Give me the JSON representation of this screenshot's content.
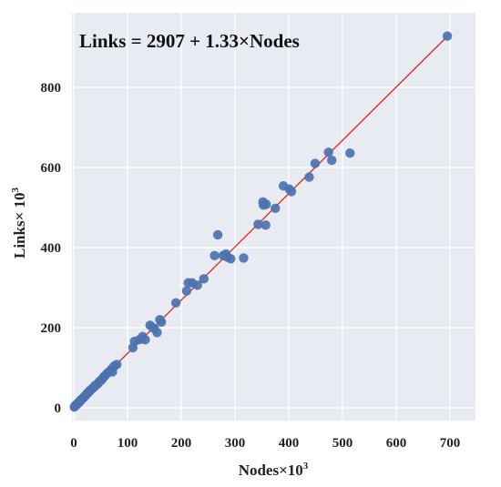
{
  "chart_data": {
    "type": "scatter",
    "title": "",
    "annotation": "Links = 2907 + 1.33×Nodes",
    "xlabel": {
      "text": "Nodes×10",
      "sup": "3"
    },
    "ylabel": {
      "text": "Links× 10",
      "sup": "3"
    },
    "xlim": [
      0,
      750
    ],
    "ylim": [
      -15,
      940
    ],
    "x_ticks": [
      0,
      100,
      200,
      300,
      400,
      500,
      600,
      700
    ],
    "y_ticks": [
      0,
      200,
      400,
      600,
      800
    ],
    "x_tick_labels": [
      "0",
      "100",
      "200",
      "300",
      "400",
      "500",
      "600",
      "700"
    ],
    "y_tick_labels": [
      "0",
      "200",
      "400",
      "600",
      "800"
    ],
    "grid": true,
    "colors": {
      "background": "#E9EBF2",
      "grid": "#FFFFFF",
      "point": "#4C72B0",
      "fit_line": "#E8221E"
    },
    "fit_line": {
      "intercept": 2.907,
      "slope": 1.33,
      "x_range": [
        0,
        695
      ]
    },
    "series": [
      {
        "points": [
          [
            1,
            2
          ],
          [
            2,
            4
          ],
          [
            3,
            5
          ],
          [
            4,
            6
          ],
          [
            5,
            8
          ],
          [
            6,
            9
          ],
          [
            7,
            10
          ],
          [
            8,
            12
          ],
          [
            9,
            13
          ],
          [
            10,
            14
          ],
          [
            11,
            16
          ],
          [
            12,
            18
          ],
          [
            13,
            19
          ],
          [
            15,
            21
          ],
          [
            16,
            23
          ],
          [
            18,
            25
          ],
          [
            19,
            27
          ],
          [
            20,
            28
          ],
          [
            22,
            31
          ],
          [
            24,
            34
          ],
          [
            25,
            36
          ],
          [
            27,
            38
          ],
          [
            29,
            41
          ],
          [
            30,
            43
          ],
          [
            33,
            46
          ],
          [
            35,
            49
          ],
          [
            38,
            52
          ],
          [
            40,
            56
          ],
          [
            43,
            58
          ],
          [
            46,
            62
          ],
          [
            48,
            66
          ],
          [
            52,
            70
          ],
          [
            55,
            76
          ],
          [
            58,
            80
          ],
          [
            62,
            86
          ],
          [
            65,
            89
          ],
          [
            70,
            96
          ],
          [
            72,
            90
          ],
          [
            75,
            104
          ],
          [
            80,
            108
          ],
          [
            110,
            150
          ],
          [
            113,
            166
          ],
          [
            122,
            170
          ],
          [
            128,
            178
          ],
          [
            133,
            170
          ],
          [
            142,
            206
          ],
          [
            147,
            200
          ],
          [
            150,
            198
          ],
          [
            155,
            188
          ],
          [
            160,
            220
          ],
          [
            163,
            214
          ],
          [
            190,
            262
          ],
          [
            210,
            292
          ],
          [
            213,
            312
          ],
          [
            220,
            312
          ],
          [
            230,
            306
          ],
          [
            242,
            322
          ],
          [
            262,
            380
          ],
          [
            268,
            432
          ],
          [
            278,
            380
          ],
          [
            283,
            384
          ],
          [
            286,
            376
          ],
          [
            292,
            372
          ],
          [
            316,
            374
          ],
          [
            343,
            458
          ],
          [
            352,
            514
          ],
          [
            353,
            506
          ],
          [
            358,
            508
          ],
          [
            357,
            456
          ],
          [
            375,
            498
          ],
          [
            390,
            554
          ],
          [
            401,
            546
          ],
          [
            405,
            540
          ],
          [
            438,
            576
          ],
          [
            449,
            610
          ],
          [
            474,
            638
          ],
          [
            480,
            618
          ],
          [
            514,
            636
          ],
          [
            695,
            928
          ]
        ]
      }
    ]
  }
}
